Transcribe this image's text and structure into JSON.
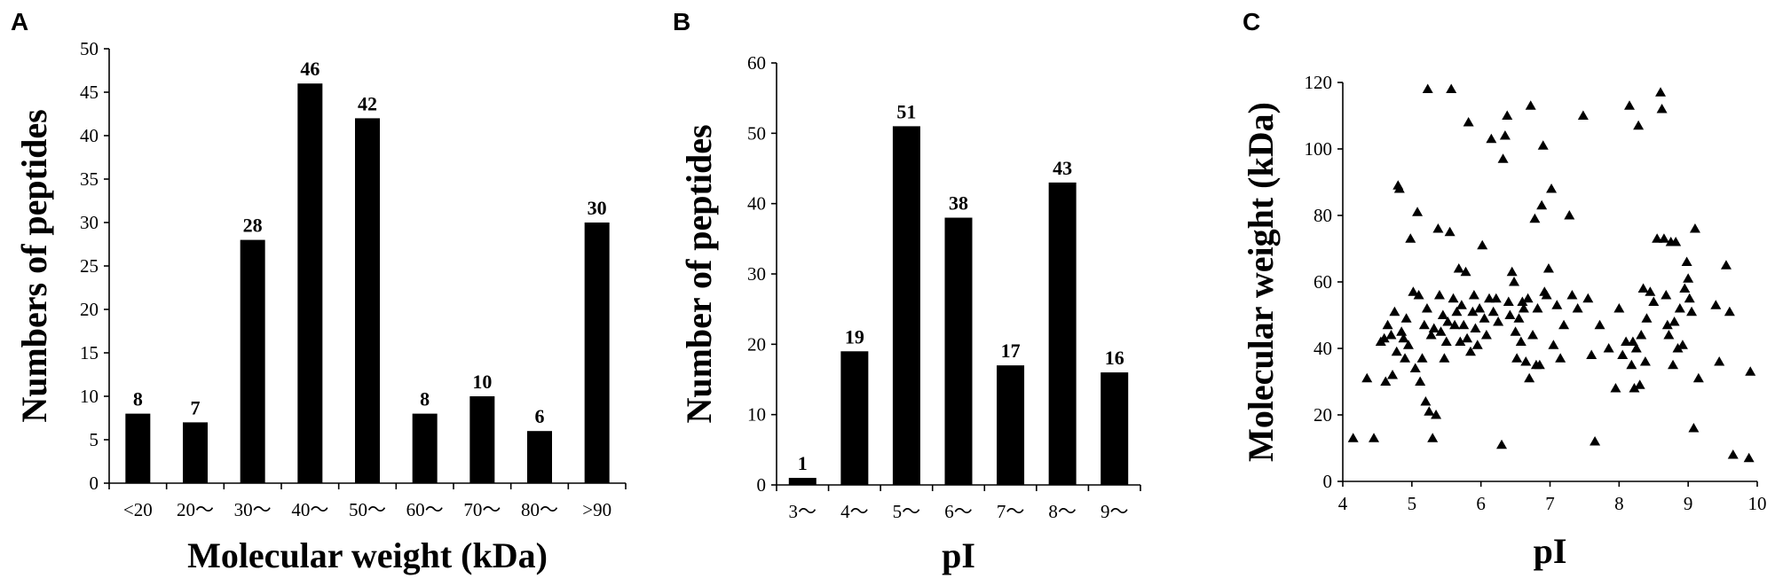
{
  "panels": {
    "a": {
      "letter": "A"
    },
    "b": {
      "letter": "B"
    },
    "c": {
      "letter": "C"
    }
  },
  "chart_data": [
    {
      "type": "bar",
      "title": "",
      "xlabel": "Molecular weight (kDa)",
      "ylabel": "Numbers of peptides",
      "categories": [
        "<20",
        "20～",
        "30～",
        "40～",
        "50～",
        "60～",
        "70～",
        "80～",
        ">90"
      ],
      "values": [
        8,
        7,
        28,
        46,
        42,
        8,
        10,
        6,
        30
      ],
      "ylim": [
        0,
        50
      ],
      "yticks": [
        0,
        5,
        10,
        15,
        20,
        25,
        30,
        35,
        40,
        45,
        50
      ],
      "grid": false,
      "bar_color": "#000000"
    },
    {
      "type": "bar",
      "title": "",
      "xlabel": "pI",
      "ylabel": "Number of peptides",
      "categories": [
        "3～",
        "4～",
        "5～",
        "6～",
        "7～",
        "8～",
        "9～"
      ],
      "values": [
        1,
        19,
        51,
        38,
        17,
        43,
        16
      ],
      "ylim": [
        0,
        60
      ],
      "yticks": [
        0,
        10,
        20,
        30,
        40,
        50,
        60
      ],
      "grid": false,
      "bar_color": "#000000"
    },
    {
      "type": "scatter",
      "title": "",
      "xlabel": "pI",
      "ylabel": "Molecular weight (kDa)",
      "xlim": [
        4,
        10
      ],
      "ylim": [
        0,
        120
      ],
      "xticks": [
        4,
        5,
        6,
        7,
        8,
        9,
        10
      ],
      "yticks": [
        0,
        20,
        40,
        60,
        80,
        100,
        120
      ],
      "grid": false,
      "marker": "triangle",
      "marker_color": "#000000",
      "points": [
        [
          4.15,
          13
        ],
        [
          4.35,
          31
        ],
        [
          4.45,
          13
        ],
        [
          4.55,
          42
        ],
        [
          4.6,
          43
        ],
        [
          4.62,
          30
        ],
        [
          4.65,
          47
        ],
        [
          4.7,
          44
        ],
        [
          4.72,
          32
        ],
        [
          4.75,
          51
        ],
        [
          4.78,
          39
        ],
        [
          4.8,
          89
        ],
        [
          4.82,
          88
        ],
        [
          4.85,
          45
        ],
        [
          4.88,
          43
        ],
        [
          4.9,
          37
        ],
        [
          4.92,
          49
        ],
        [
          4.95,
          41
        ],
        [
          4.98,
          73
        ],
        [
          5.02,
          57
        ],
        [
          5.05,
          34
        ],
        [
          5.08,
          81
        ],
        [
          5.1,
          56
        ],
        [
          5.12,
          30
        ],
        [
          5.15,
          37
        ],
        [
          5.18,
          47
        ],
        [
          5.2,
          24
        ],
        [
          5.22,
          52
        ],
        [
          5.23,
          118
        ],
        [
          5.25,
          21
        ],
        [
          5.28,
          44
        ],
        [
          5.3,
          13
        ],
        [
          5.32,
          46
        ],
        [
          5.35,
          20
        ],
        [
          5.38,
          76
        ],
        [
          5.4,
          56
        ],
        [
          5.42,
          45
        ],
        [
          5.45,
          50
        ],
        [
          5.47,
          37
        ],
        [
          5.5,
          42
        ],
        [
          5.52,
          48
        ],
        [
          5.55,
          75
        ],
        [
          5.57,
          118
        ],
        [
          5.6,
          55
        ],
        [
          5.62,
          47
        ],
        [
          5.65,
          51
        ],
        [
          5.68,
          64
        ],
        [
          5.7,
          42
        ],
        [
          5.72,
          53
        ],
        [
          5.75,
          47
        ],
        [
          5.78,
          63
        ],
        [
          5.8,
          43
        ],
        [
          5.82,
          108
        ],
        [
          5.85,
          39
        ],
        [
          5.88,
          51
        ],
        [
          5.9,
          56
        ],
        [
          5.92,
          46
        ],
        [
          5.95,
          41
        ],
        [
          5.98,
          52
        ],
        [
          6.02,
          71
        ],
        [
          6.05,
          49
        ],
        [
          6.08,
          44
        ],
        [
          6.12,
          55
        ],
        [
          6.15,
          103
        ],
        [
          6.18,
          51
        ],
        [
          6.22,
          55
        ],
        [
          6.25,
          48
        ],
        [
          6.3,
          11
        ],
        [
          6.32,
          97
        ],
        [
          6.35,
          104
        ],
        [
          6.38,
          110
        ],
        [
          6.4,
          54
        ],
        [
          6.42,
          50
        ],
        [
          6.45,
          63
        ],
        [
          6.48,
          60
        ],
        [
          6.5,
          45
        ],
        [
          6.52,
          37
        ],
        [
          6.55,
          49
        ],
        [
          6.58,
          42
        ],
        [
          6.6,
          54
        ],
        [
          6.62,
          52
        ],
        [
          6.65,
          36
        ],
        [
          6.68,
          55
        ],
        [
          6.7,
          31
        ],
        [
          6.72,
          113
        ],
        [
          6.75,
          44
        ],
        [
          6.78,
          79
        ],
        [
          6.8,
          35
        ],
        [
          6.82,
          52
        ],
        [
          6.85,
          35
        ],
        [
          6.88,
          83
        ],
        [
          6.9,
          101
        ],
        [
          6.92,
          57
        ],
        [
          6.95,
          56
        ],
        [
          6.98,
          64
        ],
        [
          7.02,
          88
        ],
        [
          7.05,
          41
        ],
        [
          7.1,
          53
        ],
        [
          7.15,
          37
        ],
        [
          7.2,
          47
        ],
        [
          7.28,
          80
        ],
        [
          7.32,
          56
        ],
        [
          7.4,
          52
        ],
        [
          7.48,
          110
        ],
        [
          7.55,
          55
        ],
        [
          7.6,
          38
        ],
        [
          7.65,
          12
        ],
        [
          7.72,
          47
        ],
        [
          7.85,
          40
        ],
        [
          7.95,
          28
        ],
        [
          8.0,
          52
        ],
        [
          8.05,
          38
        ],
        [
          8.1,
          42
        ],
        [
          8.15,
          113
        ],
        [
          8.18,
          35
        ],
        [
          8.2,
          42
        ],
        [
          8.22,
          28
        ],
        [
          8.25,
          40
        ],
        [
          8.28,
          107
        ],
        [
          8.3,
          29
        ],
        [
          8.32,
          44
        ],
        [
          8.35,
          58
        ],
        [
          8.38,
          36
        ],
        [
          8.4,
          49
        ],
        [
          8.45,
          57
        ],
        [
          8.5,
          54
        ],
        [
          8.55,
          73
        ],
        [
          8.6,
          117
        ],
        [
          8.62,
          112
        ],
        [
          8.65,
          73
        ],
        [
          8.68,
          56
        ],
        [
          8.7,
          47
        ],
        [
          8.72,
          44
        ],
        [
          8.75,
          72
        ],
        [
          8.78,
          35
        ],
        [
          8.8,
          48
        ],
        [
          8.82,
          72
        ],
        [
          8.85,
          40
        ],
        [
          8.88,
          52
        ],
        [
          8.92,
          41
        ],
        [
          8.95,
          58
        ],
        [
          8.98,
          66
        ],
        [
          9.0,
          61
        ],
        [
          9.02,
          55
        ],
        [
          9.05,
          51
        ],
        [
          9.08,
          16
        ],
        [
          9.1,
          76
        ],
        [
          9.15,
          31
        ],
        [
          9.4,
          53
        ],
        [
          9.45,
          36
        ],
        [
          9.55,
          65
        ],
        [
          9.6,
          51
        ],
        [
          9.65,
          8
        ],
        [
          9.88,
          7
        ],
        [
          9.9,
          33
        ]
      ]
    }
  ]
}
